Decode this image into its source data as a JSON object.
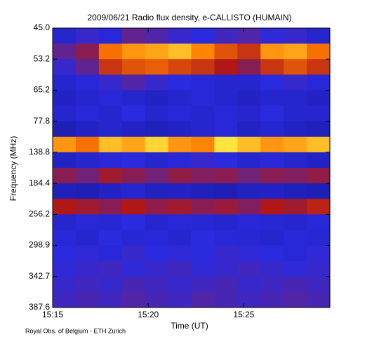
{
  "chart_data": {
    "type": "heatmap",
    "title": "2009/06/21  Radio flux density, e-CALLISTO (HUMAIN)",
    "x_label": "Time (UT)",
    "y_label": "Frequency (MHz)",
    "footnote": "Royal Obs. of Belgium - ETH Zurich",
    "xlim": [
      "15:15",
      "15:29:30"
    ],
    "xticks": [
      "15:15",
      "15:20",
      "15:25"
    ],
    "yticks": [
      {
        "value": 45,
        "label": "45.0"
      },
      {
        "value": 53.2,
        "label": "53.2"
      },
      {
        "value": 65.2,
        "label": "65.2"
      },
      {
        "value": 77.8,
        "label": "77.8"
      },
      {
        "value": 138.8,
        "label": "138.8"
      },
      {
        "value": 184.4,
        "label": "184.4"
      },
      {
        "value": 256.2,
        "label": "256.2"
      },
      {
        "value": 298.9,
        "label": "298.9"
      },
      {
        "value": 342.7,
        "label": "342.7"
      },
      {
        "value": 387.6,
        "label": "387.6"
      }
    ],
    "zlim": [
      0,
      100
    ],
    "colorscale": [
      "#000028",
      "#14148c",
      "#2a2ae0",
      "#b01818",
      "#ff7a00",
      "#ffff50",
      "#ffffff"
    ],
    "values": [
      [
        30,
        35,
        32,
        40,
        38,
        35,
        33,
        36,
        38,
        34,
        35,
        30
      ],
      [
        40,
        45,
        65,
        70,
        72,
        75,
        68,
        60,
        55,
        70,
        72,
        65
      ],
      [
        35,
        40,
        55,
        60,
        62,
        58,
        55,
        50,
        45,
        55,
        60,
        55
      ],
      [
        30,
        32,
        35,
        38,
        35,
        33,
        32,
        30,
        30,
        33,
        35,
        32
      ],
      [
        28,
        30,
        32,
        30,
        28,
        30,
        32,
        30,
        28,
        30,
        30,
        28
      ],
      [
        30,
        32,
        30,
        33,
        30,
        32,
        30,
        32,
        30,
        33,
        30,
        30
      ],
      [
        25,
        28,
        30,
        28,
        26,
        28,
        30,
        32,
        28,
        30,
        28,
        26
      ],
      [
        70,
        65,
        75,
        72,
        78,
        70,
        68,
        80,
        75,
        70,
        72,
        75
      ],
      [
        28,
        30,
        32,
        33,
        30,
        32,
        35,
        33,
        30,
        32,
        30,
        28
      ],
      [
        45,
        42,
        48,
        45,
        42,
        46,
        44,
        45,
        42,
        45,
        44,
        46
      ],
      [
        26,
        25,
        28,
        30,
        27,
        28,
        26,
        25,
        27,
        28,
        26,
        25
      ],
      [
        50,
        48,
        45,
        50,
        46,
        48,
        45,
        47,
        44,
        50,
        48,
        52
      ],
      [
        30,
        32,
        31,
        33,
        30,
        32,
        31,
        30,
        32,
        31,
        30,
        32
      ],
      [
        32,
        30,
        33,
        31,
        32,
        30,
        33,
        32,
        31,
        30,
        32,
        31
      ],
      [
        33,
        34,
        32,
        35,
        33,
        34,
        33,
        35,
        34,
        33,
        32,
        34
      ],
      [
        34,
        35,
        36,
        34,
        35,
        36,
        34,
        35,
        36,
        35,
        34,
        35
      ],
      [
        35,
        36,
        35,
        37,
        36,
        35,
        36,
        37,
        35,
        36,
        37,
        36
      ],
      [
        36,
        37,
        36,
        38,
        37,
        36,
        38,
        37,
        36,
        37,
        38,
        37
      ]
    ]
  }
}
